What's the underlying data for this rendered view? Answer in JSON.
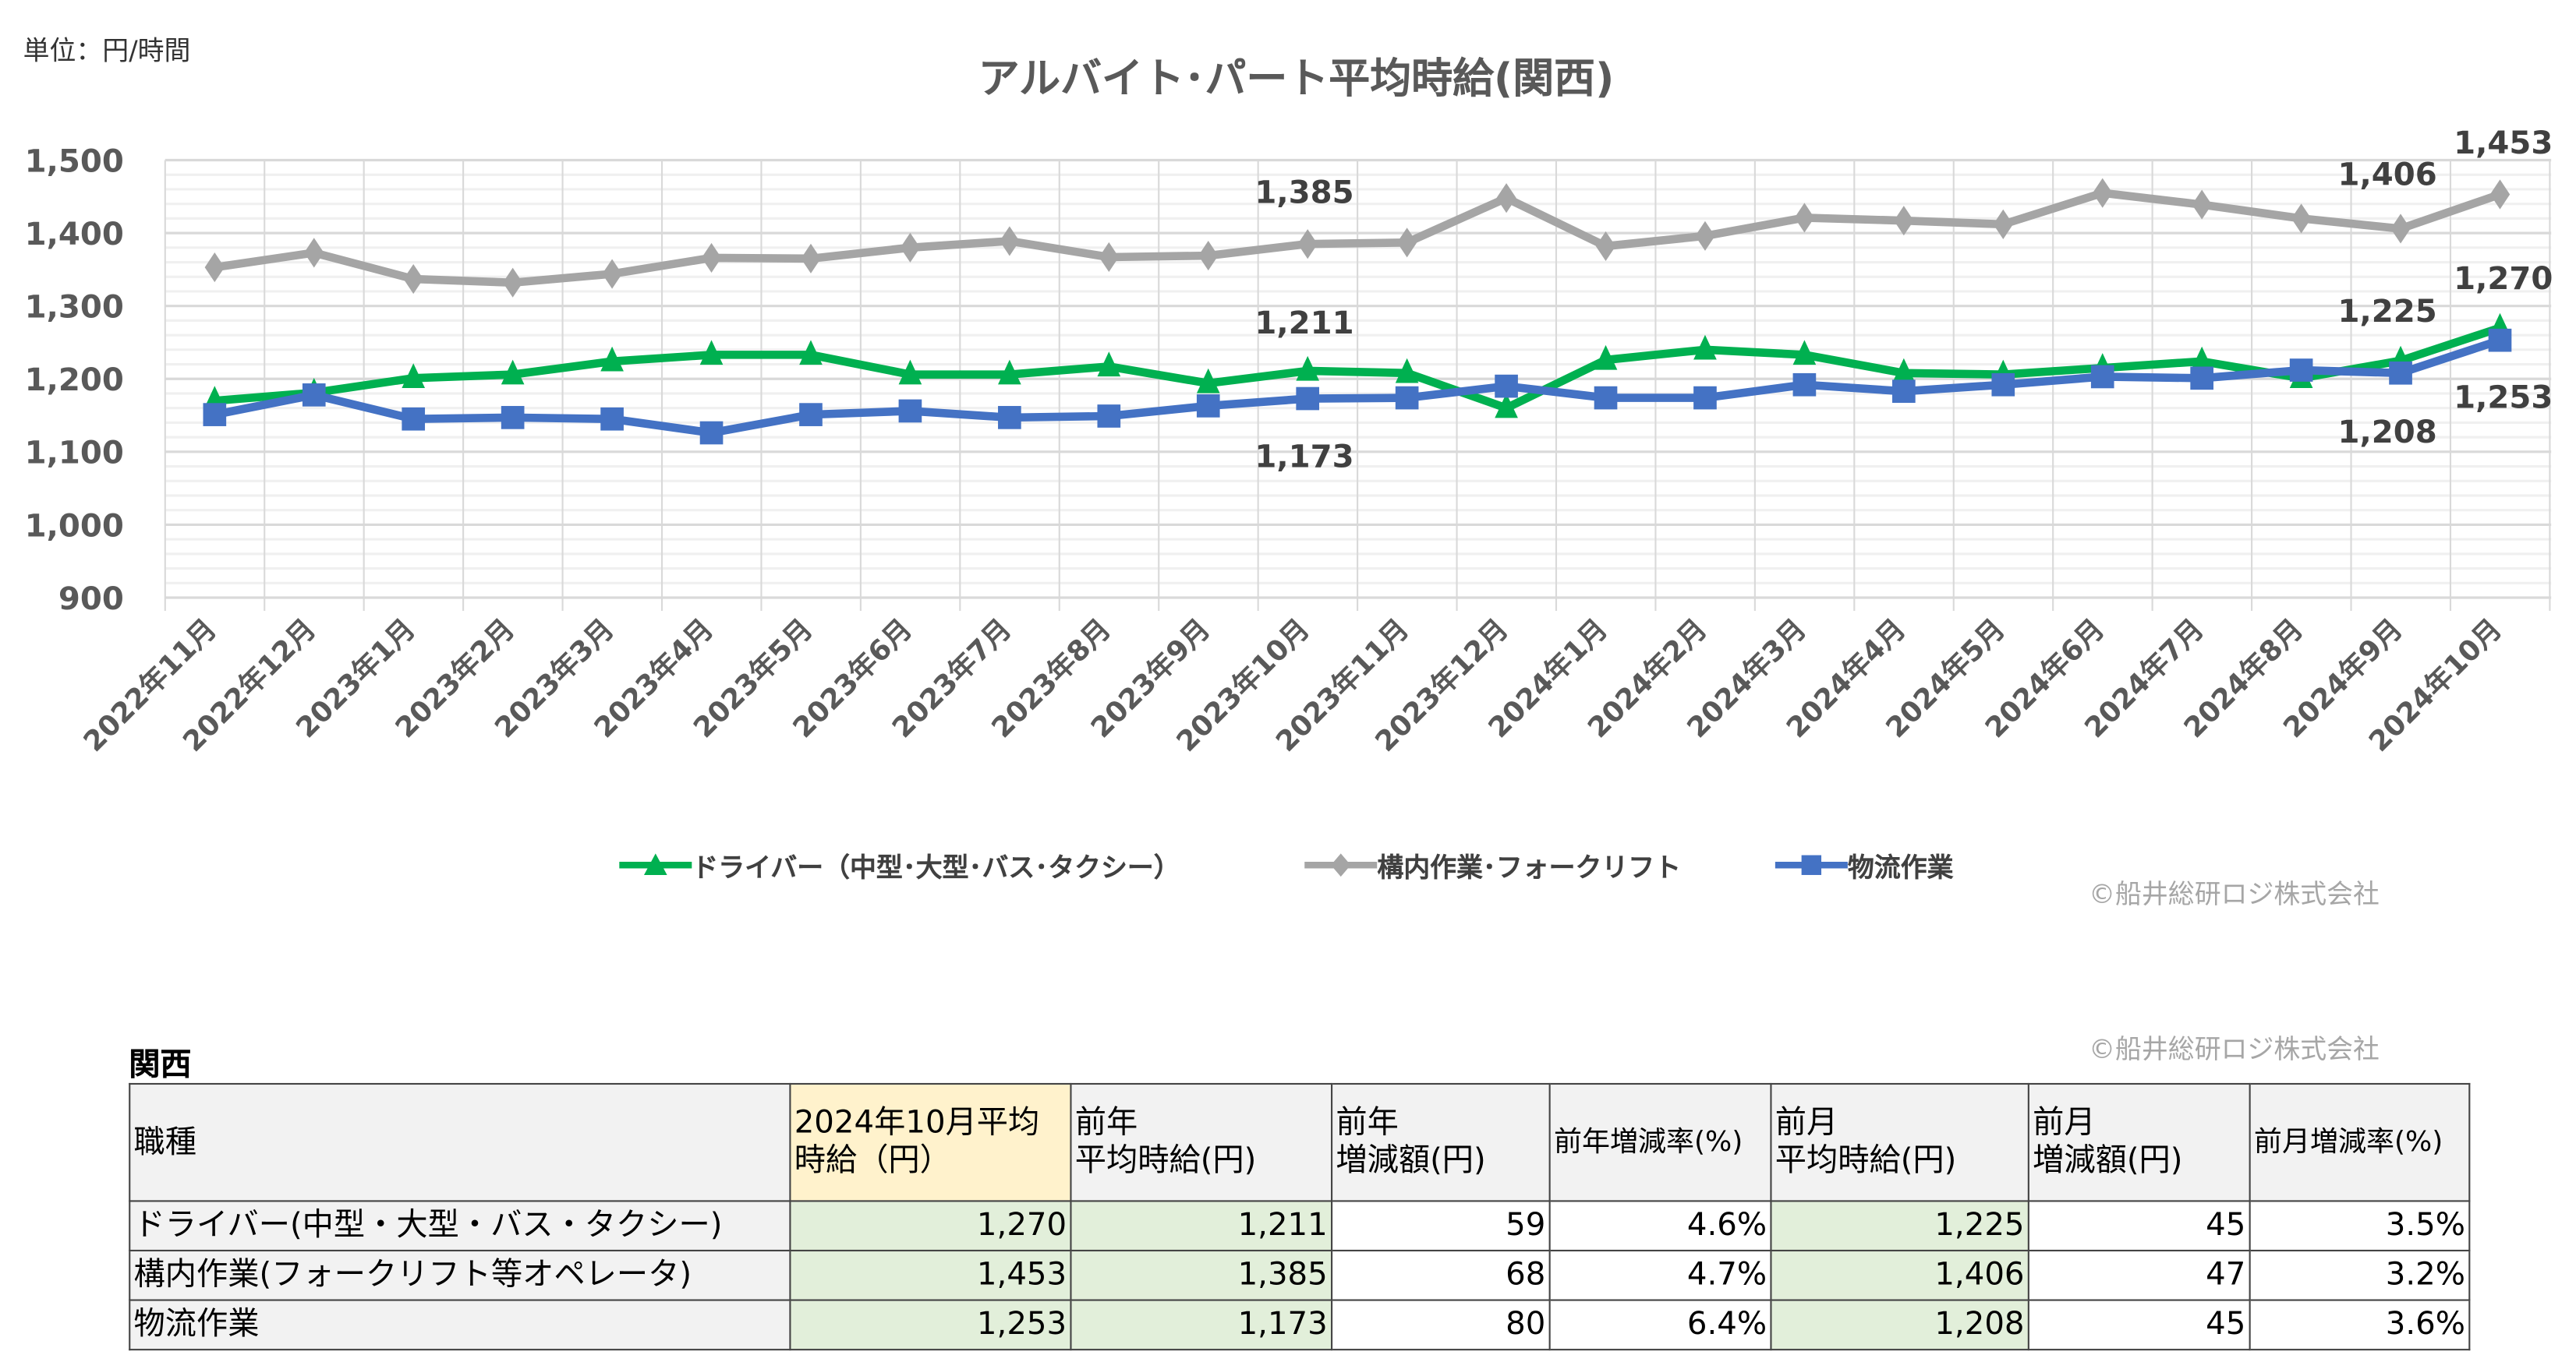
{
  "unit_label": "単位：円/時間",
  "copyright": "©船井総研ロジ株式会社",
  "chart_data": {
    "type": "line",
    "title": "アルバイト･パート平均時給(関西)",
    "categories": [
      "2022年11月",
      "2022年12月",
      "2023年1月",
      "2023年2月",
      "2023年3月",
      "2023年4月",
      "2023年5月",
      "2023年6月",
      "2023年7月",
      "2023年8月",
      "2023年9月",
      "2023年10月",
      "2023年11月",
      "2023年12月",
      "2024年1月",
      "2024年2月",
      "2024年3月",
      "2024年4月",
      "2024年5月",
      "2024年6月",
      "2024年7月",
      "2024年8月",
      "2024年9月",
      "2024年10月"
    ],
    "ylim": [
      900,
      1500
    ],
    "yticks": [
      900,
      1000,
      1100,
      1200,
      1300,
      1400,
      1500
    ],
    "ytick_labels": [
      "900",
      "1,000",
      "1,100",
      "1,200",
      "1,300",
      "1,400",
      "1,500"
    ],
    "grid": true,
    "legend_position": "bottom",
    "series": [
      {
        "name": "ドライバー（中型･大型･バス･タクシー）",
        "color": "#00B050",
        "marker": "triangle",
        "values": [
          1170,
          1181,
          1201,
          1206,
          1224,
          1233,
          1233,
          1206,
          1206,
          1217,
          1194,
          1211,
          1208,
          1160,
          1226,
          1240,
          1233,
          1208,
          1206,
          1215,
          1224,
          1201,
          1225,
          1270
        ],
        "labels": {
          "11": "1,211",
          "22": "1,225",
          "23": "1,270"
        }
      },
      {
        "name": "構内作業･フォークリフト",
        "color": "#A5A5A5",
        "marker": "diamond",
        "values": [
          1353,
          1373,
          1337,
          1332,
          1344,
          1366,
          1365,
          1380,
          1389,
          1367,
          1369,
          1385,
          1387,
          1448,
          1382,
          1396,
          1421,
          1417,
          1412,
          1455,
          1439,
          1420,
          1406,
          1453
        ],
        "labels": {
          "11": "1,385",
          "22": "1,406",
          "23": "1,453"
        }
      },
      {
        "name": "物流作業",
        "color": "#4472C4",
        "marker": "square",
        "values": [
          1151,
          1178,
          1145,
          1147,
          1145,
          1126,
          1151,
          1156,
          1147,
          1149,
          1163,
          1173,
          1174,
          1190,
          1174,
          1174,
          1192,
          1183,
          1192,
          1203,
          1201,
          1212,
          1208,
          1253
        ],
        "labels": {
          "11": "1,173",
          "22": "1,208",
          "23": "1,253"
        }
      }
    ]
  },
  "table": {
    "region": "関西",
    "headers": [
      "職種",
      "2024年10月平均時給（円）",
      "前年平均時給(円)",
      "前年増減額(円)",
      "前年増減率(%)",
      "前月平均時給(円)",
      "前月増減額(円)",
      "前月増減率(%)"
    ],
    "header_lines": [
      [
        "職種"
      ],
      [
        "2024年10月平均",
        "時給（円）"
      ],
      [
        "前年",
        "平均時給(円)"
      ],
      [
        "前年",
        "増減額(円)"
      ],
      [
        "前年",
        "増減率(%)"
      ],
      [
        "前月",
        "平均時給(円)"
      ],
      [
        "前月",
        "増減額(円)"
      ],
      [
        "前月",
        "増減率(%)"
      ]
    ],
    "rows": [
      [
        "ドライバー(中型・大型・バス・タクシー)",
        "1,270",
        "1,211",
        "59",
        "4.6%",
        "1,225",
        "45",
        "3.5%"
      ],
      [
        "構内作業(フォークリフト等オペレータ)",
        "1,453",
        "1,385",
        "68",
        "4.7%",
        "1,406",
        "47",
        "3.2%"
      ],
      [
        "物流作業",
        "1,253",
        "1,173",
        "80",
        "6.4%",
        "1,208",
        "45",
        "3.6%"
      ]
    ]
  }
}
